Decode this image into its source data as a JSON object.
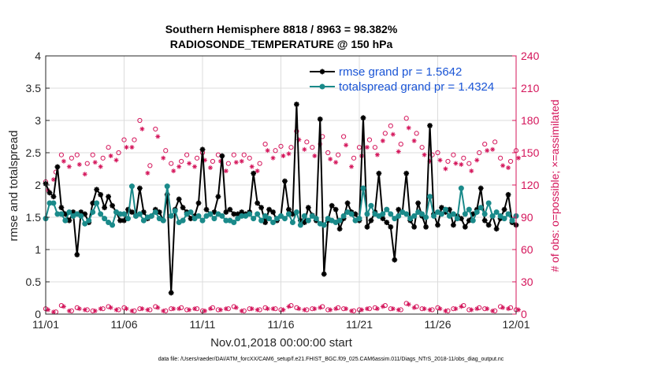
{
  "chart_data": {
    "type": "line",
    "title": "Southern Hemisphere 8818 / 8963 = 98.382%",
    "subtitle": "RADIOSONDE_TEMPERATURE @ 150 hPa",
    "xlabel": "Nov.01,2018 00:00:00 start",
    "ylabel": "rmse and totalspread",
    "ylabel_right": "# of obs: o=possible; ×=assimilated",
    "xlim": [
      0,
      30
    ],
    "ylim": [
      0,
      4
    ],
    "ylim_right": [
      0,
      240
    ],
    "grid": true,
    "x_tick_labels": [
      "11/01",
      "11/06",
      "11/11",
      "11/16",
      "11/21",
      "11/26",
      "12/01"
    ],
    "x_tick_values": [
      0,
      5,
      10,
      15,
      20,
      25,
      30
    ],
    "y_tick_labels": [
      "0",
      "0.5",
      "1",
      "1.5",
      "2",
      "2.5",
      "3",
      "3.5",
      "4"
    ],
    "y_tick_values": [
      0,
      0.5,
      1,
      1.5,
      2,
      2.5,
      3,
      3.5,
      4
    ],
    "y_right_tick_labels": [
      "0",
      "30",
      "60",
      "90",
      "120",
      "150",
      "180",
      "210",
      "240"
    ],
    "y_right_tick_values": [
      0,
      30,
      60,
      90,
      120,
      150,
      180,
      210,
      240
    ],
    "legend_position": "top-right",
    "legend": [
      "rmse grand pr = 1.5642",
      "totalspread grand pr = 1.4324"
    ],
    "colors": {
      "rmse": "#000000",
      "spread": "#1a8a8a",
      "obs": "#d4145a",
      "grid": "#dcdcdc",
      "legend_text": "#1a55d6"
    },
    "series": [
      {
        "name": "rmse",
        "x": [
          0.0,
          0.25,
          0.5,
          0.75,
          1.0,
          1.25,
          1.5,
          1.75,
          2.0,
          2.25,
          2.5,
          2.75,
          3.0,
          3.25,
          3.5,
          3.75,
          4.0,
          4.25,
          4.5,
          4.75,
          5.0,
          5.25,
          5.5,
          5.75,
          6.0,
          6.25,
          6.5,
          6.75,
          7.0,
          7.25,
          7.5,
          7.75,
          8.0,
          8.25,
          8.5,
          8.75,
          9.0,
          9.25,
          9.5,
          9.75,
          10.0,
          10.25,
          10.5,
          10.75,
          11.0,
          11.25,
          11.5,
          11.75,
          12.0,
          12.25,
          12.5,
          12.75,
          13.0,
          13.25,
          13.5,
          13.75,
          14.0,
          14.25,
          14.5,
          14.75,
          15.0,
          15.25,
          15.5,
          15.75,
          16.0,
          16.25,
          16.5,
          16.75,
          17.0,
          17.25,
          17.5,
          17.75,
          18.0,
          18.25,
          18.5,
          18.75,
          19.0,
          19.25,
          19.5,
          19.75,
          20.0,
          20.25,
          20.5,
          20.75,
          21.0,
          21.25,
          21.5,
          21.75,
          22.0,
          22.25,
          22.5,
          22.75,
          23.0,
          23.25,
          23.5,
          23.75,
          24.0,
          24.25,
          24.5,
          24.75,
          25.0,
          25.25,
          25.5,
          25.75,
          26.0,
          26.25,
          26.5,
          26.75,
          27.0,
          27.25,
          27.5,
          27.75,
          28.0,
          28.25,
          28.5,
          28.75,
          29.0,
          29.25,
          29.5,
          29.75,
          30.0
        ],
        "values": [
          2.02,
          1.88,
          1.82,
          2.28,
          1.65,
          1.55,
          1.45,
          1.58,
          0.92,
          1.58,
          1.55,
          1.42,
          1.72,
          1.93,
          1.85,
          1.65,
          1.82,
          1.68,
          1.58,
          1.45,
          1.45,
          1.62,
          1.58,
          1.52,
          1.95,
          1.58,
          1.48,
          1.52,
          1.62,
          1.58,
          1.45,
          1.85,
          0.33,
          1.62,
          1.78,
          1.65,
          1.58,
          1.48,
          1.52,
          1.72,
          2.55,
          1.62,
          1.55,
          1.58,
          1.82,
          2.45,
          1.58,
          1.62,
          1.55,
          1.55,
          1.58,
          1.55,
          1.58,
          2.18,
          1.72,
          1.65,
          1.42,
          1.62,
          1.58,
          1.45,
          1.52,
          2.06,
          1.62,
          1.55,
          3.25,
          1.45,
          1.42,
          1.65,
          1.53,
          1.45,
          3.02,
          0.62,
          1.45,
          1.68,
          1.62,
          1.32,
          1.48,
          1.72,
          1.58,
          1.55,
          1.45,
          3.04,
          1.35,
          1.45,
          1.58,
          2.18,
          1.48,
          1.42,
          1.35,
          0.84,
          1.62,
          1.58,
          2.18,
          1.45,
          1.35,
          1.72,
          1.52,
          1.35,
          2.92,
          1.55,
          1.38,
          1.65,
          1.58,
          1.62,
          1.38,
          1.52,
          1.48,
          1.35,
          1.45,
          1.55,
          1.62,
          1.95,
          1.45,
          1.38,
          1.52,
          1.32,
          1.48,
          1.62,
          1.85,
          1.42,
          1.38
        ]
      },
      {
        "name": "totalspread",
        "x": [
          0.0,
          0.25,
          0.5,
          0.75,
          1.0,
          1.25,
          1.5,
          1.75,
          2.0,
          2.25,
          2.5,
          2.75,
          3.0,
          3.25,
          3.5,
          3.75,
          4.0,
          4.25,
          4.5,
          4.75,
          5.0,
          5.25,
          5.5,
          5.75,
          6.0,
          6.25,
          6.5,
          6.75,
          7.0,
          7.25,
          7.5,
          7.75,
          8.0,
          8.25,
          8.5,
          8.75,
          9.0,
          9.25,
          9.5,
          9.75,
          10.0,
          10.25,
          10.5,
          10.75,
          11.0,
          11.25,
          11.5,
          11.75,
          12.0,
          12.25,
          12.5,
          12.75,
          13.0,
          13.25,
          13.5,
          13.75,
          14.0,
          14.25,
          14.5,
          14.75,
          15.0,
          15.25,
          15.5,
          15.75,
          16.0,
          16.25,
          16.5,
          16.75,
          17.0,
          17.25,
          17.5,
          17.75,
          18.0,
          18.25,
          18.5,
          18.75,
          19.0,
          19.25,
          19.5,
          19.75,
          20.0,
          20.25,
          20.5,
          20.75,
          21.0,
          21.25,
          21.5,
          21.75,
          22.0,
          22.25,
          22.5,
          22.75,
          23.0,
          23.25,
          23.5,
          23.75,
          24.0,
          24.25,
          24.5,
          24.75,
          25.0,
          25.25,
          25.5,
          25.75,
          26.0,
          26.25,
          26.5,
          26.75,
          27.0,
          27.25,
          27.5,
          27.75,
          28.0,
          28.25,
          28.5,
          28.75,
          29.0,
          29.25,
          29.5,
          29.75,
          30.0
        ],
        "values": [
          1.48,
          1.72,
          1.72,
          1.55,
          1.55,
          1.45,
          1.58,
          1.52,
          1.55,
          1.52,
          1.4,
          1.45,
          1.58,
          1.72,
          1.55,
          1.48,
          1.42,
          1.38,
          1.58,
          1.55,
          1.55,
          1.48,
          1.98,
          1.52,
          1.55,
          1.45,
          1.5,
          1.52,
          1.58,
          1.48,
          1.45,
          1.98,
          1.52,
          1.6,
          1.42,
          1.45,
          1.55,
          1.58,
          1.48,
          1.52,
          1.45,
          1.52,
          1.55,
          1.48,
          1.55,
          1.52,
          1.45,
          1.45,
          1.42,
          1.48,
          1.52,
          1.52,
          1.55,
          1.48,
          1.55,
          1.45,
          1.52,
          1.48,
          1.42,
          1.48,
          1.52,
          1.48,
          1.55,
          1.42,
          1.58,
          1.38,
          1.52,
          1.45,
          1.52,
          1.48,
          1.4,
          1.38,
          1.48,
          1.45,
          1.42,
          1.45,
          1.52,
          1.58,
          1.55,
          1.45,
          1.48,
          1.95,
          1.55,
          1.68,
          1.55,
          1.52,
          1.55,
          1.62,
          1.55,
          1.48,
          1.52,
          1.58,
          1.55,
          1.48,
          1.52,
          1.58,
          1.55,
          1.5,
          1.82,
          1.52,
          1.58,
          1.55,
          1.62,
          1.52,
          1.55,
          1.48,
          1.95,
          1.55,
          1.62,
          1.45,
          1.58,
          1.65,
          1.55,
          1.72,
          1.52,
          1.58,
          1.52,
          1.48,
          1.55,
          1.45,
          1.52
        ]
      },
      {
        "name": "obs possible (o)",
        "axis": "right",
        "x": [
          0.0,
          0.5,
          1.0,
          1.5,
          2.0,
          2.5,
          3.0,
          3.5,
          4.0,
          4.5,
          5.0,
          5.5,
          6.0,
          6.5,
          7.0,
          7.5,
          8.0,
          8.5,
          9.0,
          9.5,
          10.0,
          10.5,
          11.0,
          11.5,
          12.0,
          12.5,
          13.0,
          13.5,
          14.0,
          14.5,
          15.0,
          15.5,
          16.0,
          16.5,
          17.0,
          17.5,
          18.0,
          18.5,
          19.0,
          19.5,
          20.0,
          20.5,
          21.0,
          21.5,
          22.0,
          22.5,
          23.0,
          23.5,
          24.0,
          24.5,
          25.0,
          25.5,
          26.0,
          26.5,
          27.0,
          27.5,
          28.0,
          28.5,
          29.0,
          29.5,
          30.0
        ],
        "values": [
          123,
          132,
          148,
          145,
          148,
          140,
          148,
          145,
          155,
          150,
          162,
          162,
          180,
          138,
          172,
          152,
          140,
          142,
          148,
          145,
          150,
          142,
          148,
          140,
          148,
          148,
          145,
          140,
          158,
          152,
          156,
          155,
          170,
          160,
          155,
          165,
          150,
          148,
          165,
          145,
          155,
          162,
          155,
          168,
          175,
          158,
          182,
          168,
          155,
          148,
          150,
          142,
          148,
          145,
          140,
          150,
          158,
          160,
          145,
          142,
          152
        ],
        "marker_values": [
          5,
          2,
          8,
          3,
          6,
          4,
          3,
          5,
          7,
          4,
          6,
          3,
          5,
          4,
          7,
          3,
          5,
          6,
          4,
          5,
          3,
          6,
          4,
          5,
          7,
          3,
          5,
          4,
          6,
          5,
          4,
          8,
          6,
          4,
          5,
          7,
          4,
          6,
          5,
          3,
          4,
          5,
          6,
          8,
          5,
          4,
          10,
          7,
          5,
          4,
          6,
          3,
          5,
          8,
          4,
          6,
          5,
          3,
          7,
          6,
          4
        ]
      },
      {
        "name": "obs assimilated (×)",
        "axis": "right",
        "x": [
          0.0,
          0.5,
          1.0,
          1.5,
          2.0,
          2.5,
          3.0,
          3.5,
          4.0,
          4.5,
          5.0,
          5.5,
          6.0,
          6.5,
          7.0,
          7.5,
          8.0,
          8.5,
          9.0,
          9.5,
          10.0,
          10.5,
          11.0,
          11.5,
          12.0,
          12.5,
          13.0,
          13.5,
          14.0,
          14.5,
          15.0,
          15.5,
          16.0,
          16.5,
          17.0,
          17.5,
          18.0,
          18.5,
          19.0,
          19.5,
          20.0,
          20.5,
          21.0,
          21.5,
          22.0,
          22.5,
          23.0,
          23.5,
          24.0,
          24.5,
          25.0,
          25.5,
          26.0,
          26.5,
          27.0,
          27.5,
          28.0,
          28.5,
          29.0,
          29.5,
          30.0
        ],
        "values": [
          118,
          128,
          145,
          140,
          142,
          133,
          144,
          140,
          150,
          146,
          158,
          158,
          175,
          134,
          168,
          148,
          136,
          140,
          143,
          140,
          146,
          139,
          145,
          136,
          144,
          145,
          140,
          136,
          155,
          148,
          150,
          152,
          165,
          156,
          150,
          161,
          147,
          144,
          160,
          140,
          150,
          158,
          151,
          164,
          170,
          154,
          176,
          164,
          151,
          145,
          146,
          138,
          143,
          142,
          136,
          146,
          155,
          156,
          141,
          139,
          148
        ],
        "marker_values": [
          4,
          2,
          7,
          3,
          5,
          4,
          3,
          5,
          6,
          4,
          5,
          3,
          5,
          4,
          6,
          3,
          5,
          5,
          4,
          5,
          3,
          5,
          4,
          5,
          6,
          3,
          5,
          4,
          5,
          5,
          4,
          7,
          5,
          4,
          5,
          6,
          4,
          5,
          5,
          3,
          4,
          5,
          5,
          7,
          5,
          4,
          9,
          6,
          5,
          4,
          5,
          3,
          5,
          7,
          4,
          5,
          5,
          3,
          6,
          5,
          4
        ]
      }
    ]
  },
  "footer": {
    "text": "data file: /Users/raeder/DAI/ATM_forcXX/CAM6_setup/f.e21.FHIST_BGC.f09_025.CAM6assim.011/Diags_NTrS_2018-11/obs_diag_output.nc"
  }
}
